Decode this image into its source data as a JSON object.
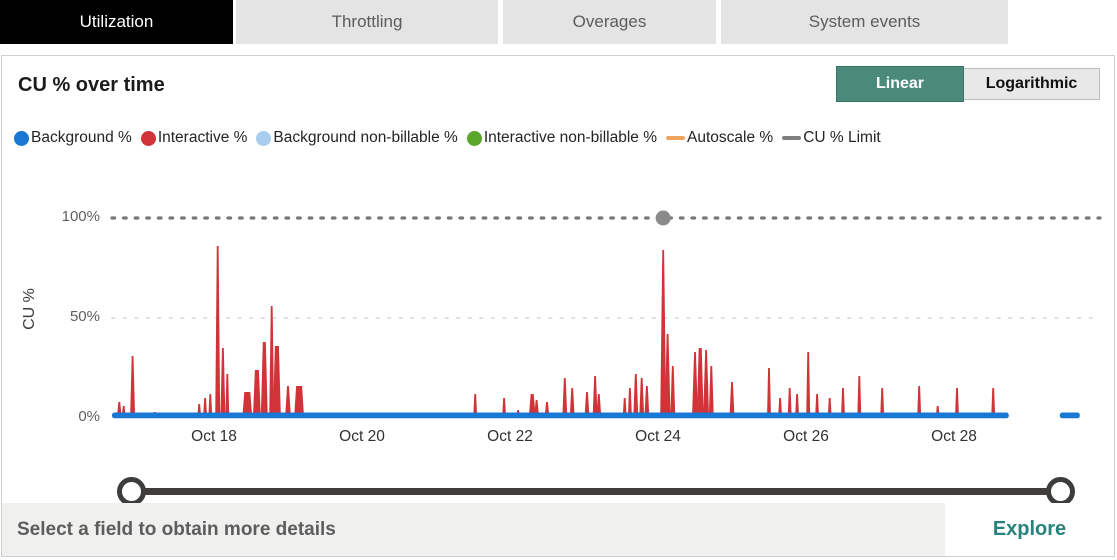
{
  "tabs": [
    {
      "label": "Utilization",
      "active": true
    },
    {
      "label": "Throttling",
      "active": false
    },
    {
      "label": "Overages",
      "active": false
    },
    {
      "label": "System events",
      "active": false
    }
  ],
  "card": {
    "title": "CU % over time",
    "scale_toggle": {
      "linear_label": "Linear",
      "logarithmic_label": "Logarithmic",
      "active": "Linear",
      "active_color": "#4b8a7a"
    }
  },
  "legend": [
    {
      "label": "Background %",
      "swatch": "dot",
      "color": "#1878d3"
    },
    {
      "label": "Interactive %",
      "swatch": "dot",
      "color": "#d13438"
    },
    {
      "label": "Background non-billable %",
      "swatch": "dot",
      "color": "#a9cdee"
    },
    {
      "label": "Interactive non-billable %",
      "swatch": "dot",
      "color": "#5aa62b"
    },
    {
      "label": "Autoscale %",
      "swatch": "line",
      "color": "#efa45e"
    },
    {
      "label": "CU % Limit",
      "swatch": "line",
      "color": "#7f7f7f"
    }
  ],
  "chart_data": {
    "type": "area",
    "title": "CU % over time",
    "ylabel": "CU %",
    "ylim": [
      0,
      100
    ],
    "yticks": [
      "100%",
      "50%",
      "0%"
    ],
    "x_axis": {
      "unit": "date (October)",
      "tick_labels": [
        "Oct 18",
        "Oct 20",
        "Oct 22",
        "Oct 24",
        "Oct 26",
        "Oct 28"
      ],
      "tick_days": [
        18,
        20,
        22,
        24,
        26,
        28
      ],
      "domain_days": [
        16.62,
        30.0
      ]
    },
    "cu_limit_line": {
      "value_pct": 100,
      "style": "dotted",
      "color": "#787878",
      "marker_day": 24.07,
      "marker_color": "#8a8a8a"
    },
    "series": [
      {
        "name": "Background %",
        "color": "#1878d3",
        "approx_value_pct": 1.5,
        "segments_days": [
          [
            16.62,
            28.74
          ],
          [
            29.43,
            29.7
          ]
        ]
      },
      {
        "name": "Interactive %",
        "color": "#d13438",
        "note": "spikes as [day, peak_pct, base_width_px]",
        "points": [
          [
            16.72,
            8,
            5
          ],
          [
            16.78,
            6,
            4
          ],
          [
            16.9,
            31,
            5
          ],
          [
            17.2,
            3,
            4
          ],
          [
            17.8,
            7,
            4
          ],
          [
            17.88,
            10,
            4
          ],
          [
            17.95,
            12,
            4
          ],
          [
            18.05,
            86,
            5
          ],
          [
            18.12,
            35,
            5
          ],
          [
            18.18,
            22,
            4
          ],
          [
            18.45,
            13,
            10
          ],
          [
            18.58,
            24,
            8
          ],
          [
            18.68,
            38,
            7
          ],
          [
            18.78,
            56,
            5
          ],
          [
            18.85,
            36,
            8
          ],
          [
            19.0,
            16,
            6
          ],
          [
            19.15,
            16,
            10
          ],
          [
            21.53,
            12,
            4
          ],
          [
            21.92,
            10,
            4
          ],
          [
            22.11,
            4,
            4
          ],
          [
            22.3,
            12,
            7
          ],
          [
            22.36,
            9,
            5
          ],
          [
            22.5,
            8,
            5
          ],
          [
            22.74,
            20,
            5
          ],
          [
            22.84,
            15,
            5
          ],
          [
            23.04,
            13,
            5
          ],
          [
            23.15,
            21,
            5
          ],
          [
            23.2,
            12,
            5
          ],
          [
            23.55,
            10,
            4
          ],
          [
            23.62,
            15,
            4
          ],
          [
            23.7,
            22,
            5
          ],
          [
            23.78,
            20,
            5
          ],
          [
            23.85,
            16,
            5
          ],
          [
            24.07,
            84,
            6
          ],
          [
            24.13,
            42,
            6
          ],
          [
            24.2,
            26,
            5
          ],
          [
            24.5,
            33,
            6
          ],
          [
            24.57,
            35,
            7
          ],
          [
            24.65,
            34,
            6
          ],
          [
            24.72,
            26,
            5
          ],
          [
            25.0,
            18,
            5
          ],
          [
            25.5,
            25,
            4
          ],
          [
            25.65,
            10,
            4
          ],
          [
            25.78,
            15,
            4
          ],
          [
            25.88,
            12,
            4
          ],
          [
            26.03,
            33,
            4
          ],
          [
            26.15,
            12,
            4
          ],
          [
            26.32,
            10,
            4
          ],
          [
            26.5,
            15,
            4
          ],
          [
            26.72,
            21,
            4
          ],
          [
            27.03,
            15,
            4
          ],
          [
            27.53,
            16,
            4
          ],
          [
            27.78,
            6,
            4
          ],
          [
            28.04,
            15,
            4
          ],
          [
            28.53,
            15,
            4
          ]
        ]
      },
      {
        "name": "Background non-billable %",
        "color": "#a9cdee",
        "points": []
      },
      {
        "name": "Interactive non-billable %",
        "color": "#5aa62b",
        "points": []
      },
      {
        "name": "Autoscale %",
        "color": "#efa45e",
        "points": []
      }
    ],
    "legend_position": "top",
    "grid": "50% faint dotted line only"
  },
  "status_bar": {
    "message": "Select a field to obtain more details",
    "explore_label": "Explore",
    "explore_color": "#27837b"
  }
}
